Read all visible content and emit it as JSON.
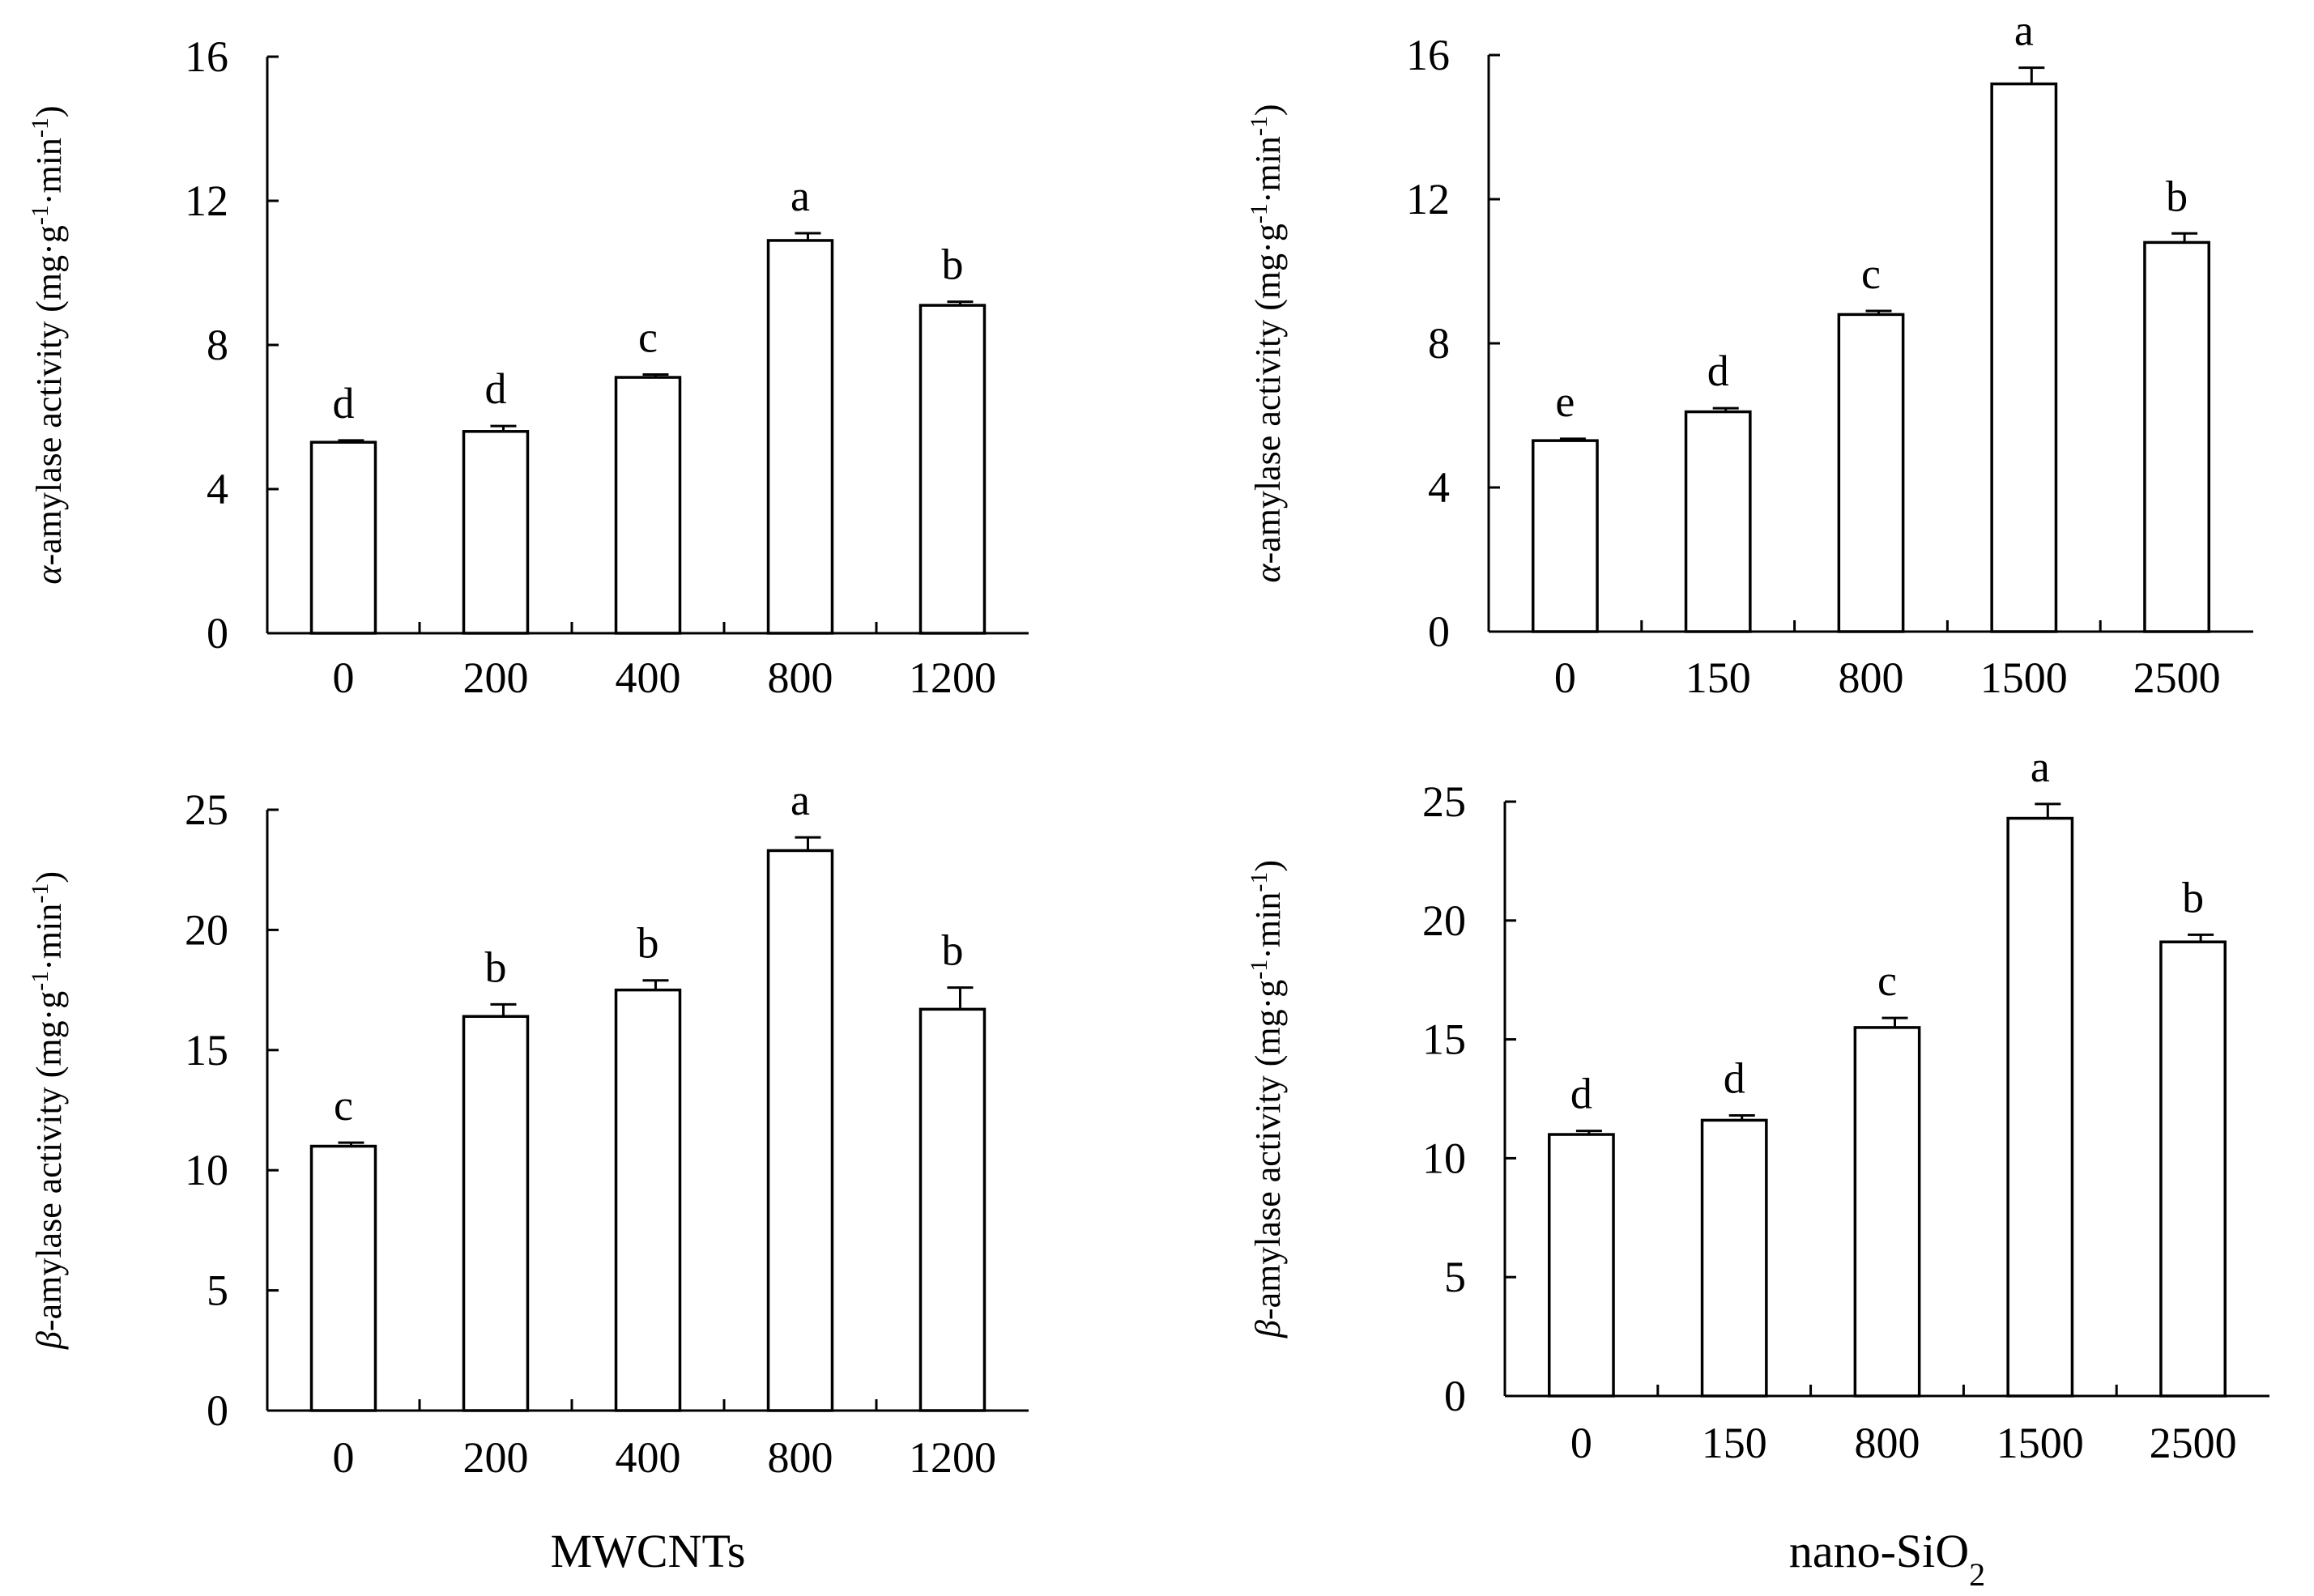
{
  "chart_data": [
    {
      "id": "alpha-mwcnts",
      "type": "bar",
      "categories": [
        "0",
        "200",
        "400",
        "800",
        "1200"
      ],
      "values": [
        5.3,
        5.6,
        7.1,
        10.9,
        9.1
      ],
      "errors": [
        0.05,
        0.15,
        0.08,
        0.2,
        0.1
      ],
      "letters": [
        "d",
        "d",
        "c",
        "a",
        "b"
      ],
      "ylabel_prefix": "α",
      "ylabel_main": "-amylase activity (mg·g",
      "ylabel_mid": "·min",
      "ylabel_sup": "-1",
      "ylabel_end": ")",
      "yticks": [
        "0",
        "4",
        "8",
        "12",
        "16"
      ],
      "ylim": [
        0,
        16
      ],
      "xlabel": ""
    },
    {
      "id": "alpha-sio2",
      "type": "bar",
      "categories": [
        "0",
        "150",
        "800",
        "1500",
        "2500"
      ],
      "values": [
        5.3,
        6.1,
        8.8,
        15.2,
        10.8
      ],
      "errors": [
        0.05,
        0.1,
        0.1,
        0.45,
        0.25
      ],
      "letters": [
        "e",
        "d",
        "c",
        "a",
        "b"
      ],
      "ylabel_prefix": "α",
      "ylabel_main": "-amylase activity (mg·g",
      "ylabel_mid": "·min",
      "ylabel_sup": "-1",
      "ylabel_end": ")",
      "yticks": [
        "0",
        "4",
        "8",
        "12",
        "16"
      ],
      "ylim": [
        0,
        16
      ],
      "xlabel": ""
    },
    {
      "id": "beta-mwcnts",
      "type": "bar",
      "categories": [
        "0",
        "200",
        "400",
        "800",
        "1200"
      ],
      "values": [
        11.0,
        16.4,
        17.5,
        23.3,
        16.7
      ],
      "errors": [
        0.15,
        0.5,
        0.4,
        0.55,
        0.9
      ],
      "letters": [
        "c",
        "b",
        "b",
        "a",
        "b"
      ],
      "ylabel_prefix": "β",
      "ylabel_main": "-amylase activity (mg·g",
      "ylabel_mid": "·min",
      "ylabel_sup": "-1",
      "ylabel_end": ")",
      "yticks": [
        "0",
        "5",
        "10",
        "15",
        "20",
        "25"
      ],
      "ylim": [
        0,
        25
      ],
      "xlabel": "MWCNTs",
      "xlabel_sub": ""
    },
    {
      "id": "beta-sio2",
      "type": "bar",
      "categories": [
        "0",
        "150",
        "800",
        "1500",
        "2500"
      ],
      "values": [
        11.0,
        11.6,
        15.5,
        24.3,
        19.1
      ],
      "errors": [
        0.15,
        0.2,
        0.4,
        0.6,
        0.3
      ],
      "letters": [
        "d",
        "d",
        "c",
        "a",
        "b"
      ],
      "ylabel_prefix": "β",
      "ylabel_main": "-amylase activity (mg·g",
      "ylabel_mid": "·min",
      "ylabel_sup": "-1",
      "ylabel_end": ")",
      "yticks": [
        "0",
        "5",
        "10",
        "15",
        "20",
        "25"
      ],
      "ylim": [
        0,
        25
      ],
      "xlabel": "nano-SiO",
      "xlabel_sub": "2"
    }
  ]
}
